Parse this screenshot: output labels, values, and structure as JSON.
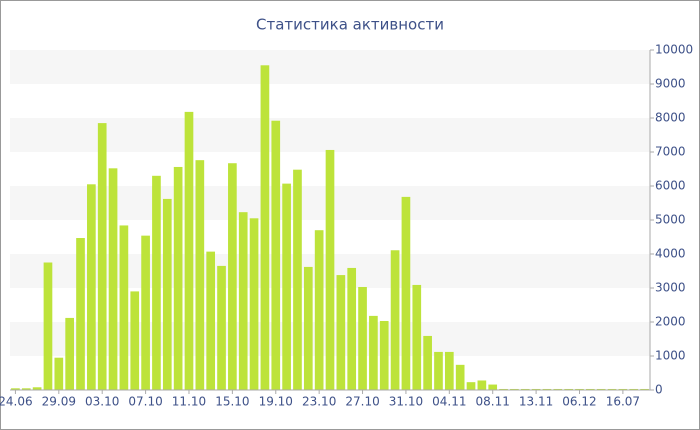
{
  "chart_data": {
    "type": "bar",
    "title": "Статистика активности",
    "categories": [
      "24.06",
      null,
      null,
      null,
      "29.09",
      null,
      null,
      null,
      "03.10",
      null,
      null,
      null,
      "07.10",
      null,
      null,
      null,
      "11.10",
      null,
      null,
      null,
      "15.10",
      null,
      null,
      null,
      "19.10",
      null,
      null,
      null,
      "23.10",
      null,
      null,
      null,
      "27.10",
      null,
      null,
      null,
      "31.10",
      null,
      null,
      null,
      "04.11",
      null,
      null,
      null,
      "08.11",
      null,
      null,
      null,
      "13.11",
      null,
      null,
      null,
      "06.12",
      null,
      null,
      null,
      "16.07",
      null,
      null
    ],
    "values": [
      50,
      50,
      80,
      3750,
      950,
      2120,
      4470,
      6050,
      7850,
      6520,
      4840,
      2900,
      4540,
      6300,
      5620,
      6560,
      8180,
      6760,
      4070,
      3650,
      6670,
      5230,
      5050,
      9550,
      7920,
      6070,
      6480,
      3620,
      4700,
      7060,
      3380,
      3590,
      3030,
      2180,
      2030,
      4110,
      5680,
      3090,
      1590,
      1120,
      1120,
      740,
      230,
      280,
      160,
      30,
      30,
      30,
      30,
      30,
      30,
      30,
      30,
      30,
      30,
      30,
      30,
      30,
      30
    ],
    "color": "#bde33a",
    "ylim": [
      0,
      10000
    ],
    "yticks": [
      0,
      1000,
      2000,
      3000,
      4000,
      5000,
      6000,
      7000,
      8000,
      9000,
      10000
    ],
    "grid": true
  }
}
